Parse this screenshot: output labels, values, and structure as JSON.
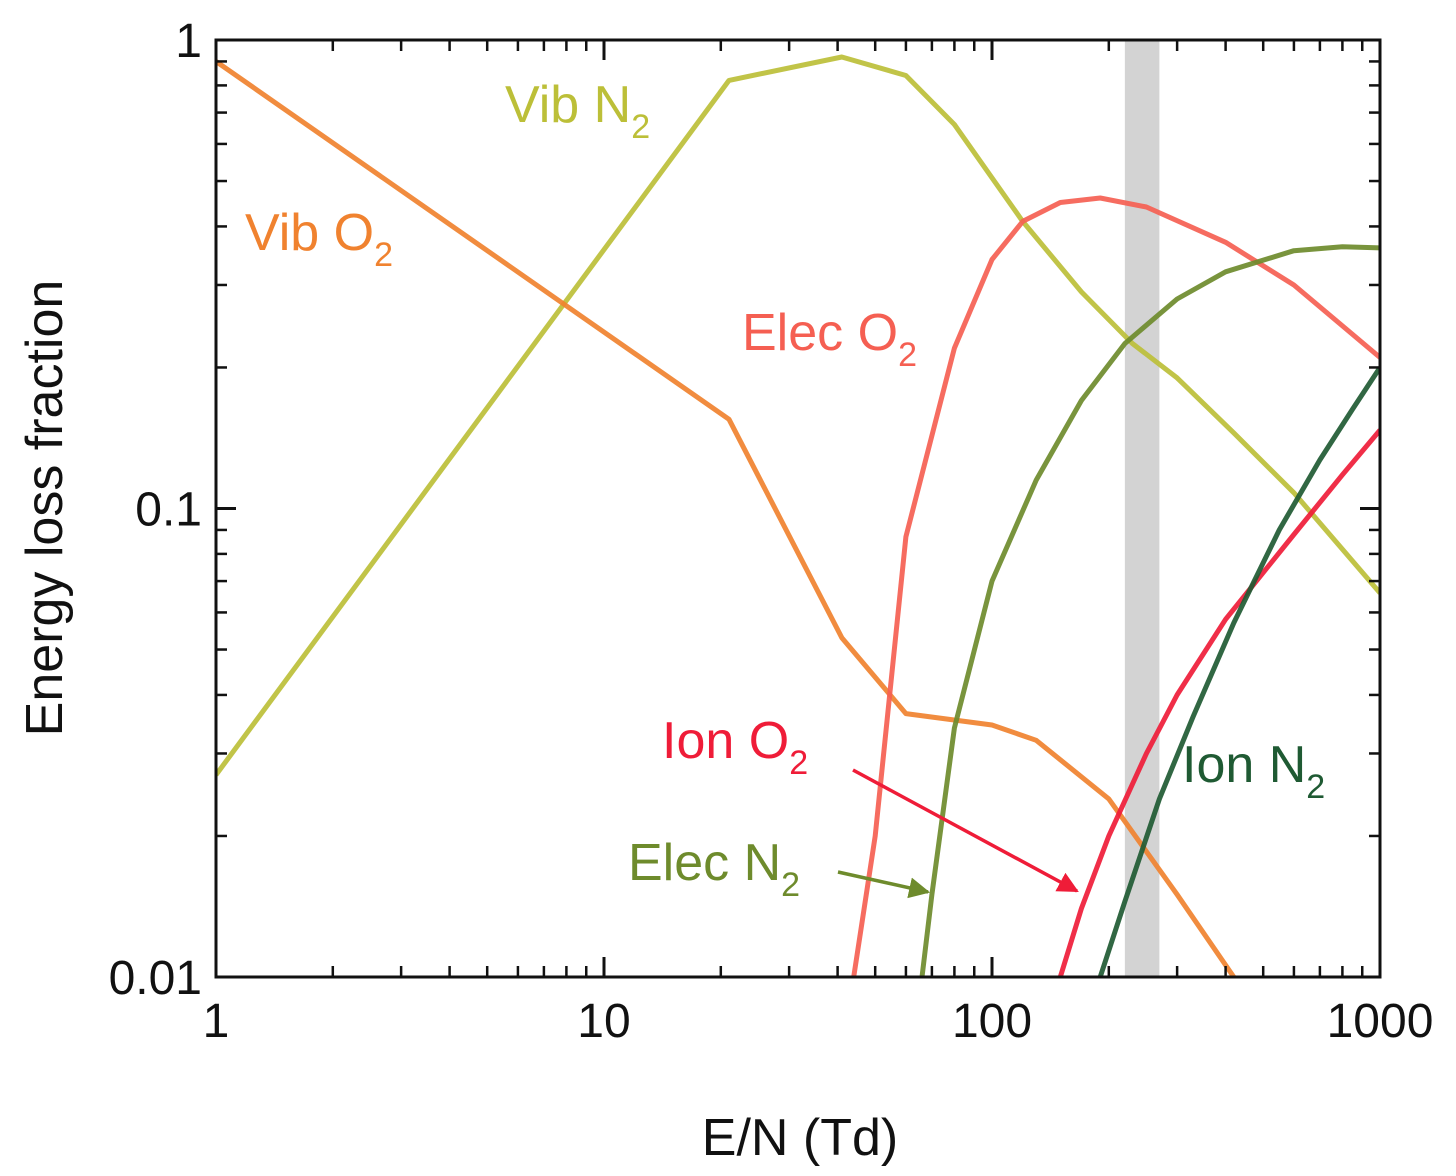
{
  "chart_data": {
    "type": "line",
    "xlabel": "E/N (Td)",
    "ylabel": "Energy loss fraction",
    "xscale": "log",
    "yscale": "log",
    "xlim": [
      1,
      1000
    ],
    "ylim": [
      0.01,
      1
    ],
    "x_ticks": [
      {
        "value": 1,
        "label": "1"
      },
      {
        "value": 10,
        "label": "10"
      },
      {
        "value": 100,
        "label": "100"
      },
      {
        "value": 1000,
        "label": "1000"
      }
    ],
    "y_ticks": [
      {
        "value": 0.01,
        "label": "0.01"
      },
      {
        "value": 0.1,
        "label": "0.1"
      },
      {
        "value": 1,
        "label": "1"
      }
    ],
    "shaded_band": {
      "x_range": [
        220,
        270
      ],
      "color": "#d3d3d3"
    },
    "series": [
      {
        "id": "vib-n2",
        "label_main": "Vib N",
        "label_sub": "2",
        "color": "#bcbf38",
        "x": [
          1,
          21,
          41,
          60,
          80,
          120,
          170,
          230,
          300,
          420,
          600,
          1000
        ],
        "y": [
          0.027,
          0.82,
          0.92,
          0.84,
          0.66,
          0.41,
          0.29,
          0.225,
          0.19,
          0.145,
          0.108,
          0.066
        ]
      },
      {
        "id": "vib-o2",
        "label_main": "Vib O",
        "label_sub": "2",
        "color": "#f0822f",
        "x": [
          1,
          21,
          41,
          60,
          100,
          130,
          200,
          300,
          420
        ],
        "y": [
          0.9,
          0.155,
          0.053,
          0.0365,
          0.0345,
          0.032,
          0.024,
          0.015,
          0.01
        ]
      },
      {
        "id": "elec-o2",
        "label_main": "Elec O",
        "label_sub": "2",
        "color": "#f55f52",
        "x": [
          44,
          50,
          60,
          80,
          100,
          120,
          150,
          190,
          250,
          400,
          600,
          1000
        ],
        "y": [
          0.01,
          0.02,
          0.087,
          0.22,
          0.34,
          0.41,
          0.45,
          0.46,
          0.44,
          0.37,
          0.3,
          0.21
        ]
      },
      {
        "id": "elec-n2",
        "label_main": "Elec N",
        "label_sub": "2",
        "color": "#6e8b2c",
        "x": [
          66,
          70,
          80,
          100,
          130,
          170,
          220,
          300,
          400,
          600,
          800,
          1000
        ],
        "y": [
          0.01,
          0.015,
          0.034,
          0.07,
          0.115,
          0.17,
          0.225,
          0.28,
          0.32,
          0.355,
          0.362,
          0.36
        ]
      },
      {
        "id": "ion-o2",
        "label_main": "Ion O",
        "label_sub": "2",
        "color": "#ef1c38",
        "x": [
          150,
          170,
          200,
          250,
          300,
          400,
          600,
          800,
          1000
        ],
        "y": [
          0.01,
          0.014,
          0.02,
          0.03,
          0.04,
          0.058,
          0.088,
          0.118,
          0.147
        ]
      },
      {
        "id": "ion-n2",
        "label_main": "Ion N",
        "label_sub": "2",
        "color": "#1f5a33",
        "x": [
          190,
          220,
          270,
          330,
          420,
          550,
          700,
          850,
          1000
        ],
        "y": [
          0.01,
          0.0145,
          0.024,
          0.036,
          0.057,
          0.09,
          0.127,
          0.163,
          0.2
        ]
      }
    ]
  }
}
